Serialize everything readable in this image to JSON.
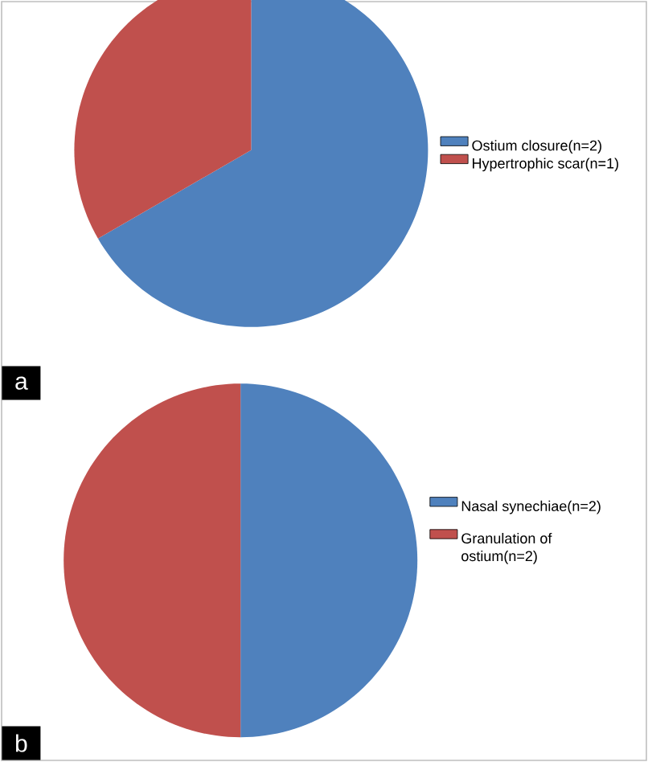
{
  "chart_data": [
    {
      "type": "pie",
      "categories": [
        "Ostium closure(n=2)",
        "Hypertrophic scar(n=1)"
      ],
      "values": [
        2,
        1
      ],
      "colors": [
        "#4f81bd",
        "#c0504d"
      ],
      "legend": "right",
      "annotations": [
        "a"
      ]
    },
    {
      "type": "pie",
      "categories": [
        "Nasal synechiae(n=2)",
        "Granulation of ostium(n=2)"
      ],
      "values": [
        2,
        2
      ],
      "colors": [
        "#4f81bd",
        "#c0504d"
      ],
      "legend": "right",
      "annotations": [
        "b"
      ]
    }
  ]
}
